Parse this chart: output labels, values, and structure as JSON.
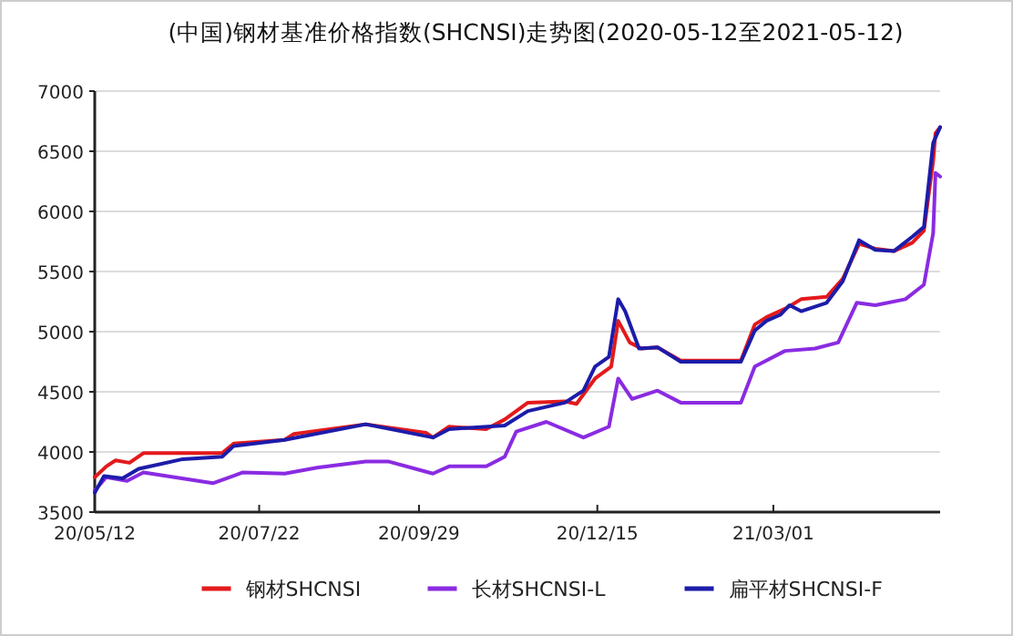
{
  "chart_data": {
    "type": "line",
    "title": "(中国)钢材基准价格指数(SHCNSI)走势图(2020-05-12至2021-05-12)",
    "xlim": [
      "2020-05-12",
      "2021-05-12"
    ],
    "xticks": [
      {
        "value": "2020-05-12",
        "label": "20/05/12"
      },
      {
        "value": "2020-07-22",
        "label": "20/07/22"
      },
      {
        "value": "2020-09-29",
        "label": "20/09/29"
      },
      {
        "value": "2020-12-15",
        "label": "20/12/15"
      },
      {
        "value": "2021-03-01",
        "label": "21/03/01"
      }
    ],
    "ylim": [
      3500,
      7000
    ],
    "yticks": [
      3500,
      4000,
      4500,
      5000,
      5500,
      6000,
      6500,
      7000
    ],
    "grid": "y",
    "legend": "bottom",
    "series": [
      {
        "name": "钢材SHCNSI",
        "color": "#e31a1c",
        "x": [
          "2020-05-12",
          "2020-05-17",
          "2020-05-21",
          "2020-05-27",
          "2020-06-02",
          "2020-06-16",
          "2020-07-06",
          "2020-07-11",
          "2020-08-02",
          "2020-08-06",
          "2020-09-06",
          "2020-10-02",
          "2020-10-05",
          "2020-10-12",
          "2020-10-28",
          "2020-11-05",
          "2020-11-15",
          "2020-12-01",
          "2020-12-06",
          "2020-12-14",
          "2020-12-21",
          "2020-12-24",
          "2020-12-29",
          "2021-01-03",
          "2021-01-10",
          "2021-01-20",
          "2021-02-02",
          "2021-02-15",
          "2021-02-21",
          "2021-02-26",
          "2021-03-06",
          "2021-03-13",
          "2021-03-24",
          "2021-03-31",
          "2021-04-07",
          "2021-04-14",
          "2021-04-22",
          "2021-04-30",
          "2021-05-05",
          "2021-05-09",
          "2021-05-10",
          "2021-05-12"
        ],
        "values": [
          3790,
          3880,
          3930,
          3910,
          3990,
          3990,
          3990,
          4070,
          4100,
          4150,
          4230,
          4160,
          4120,
          4210,
          4190,
          4270,
          4410,
          4420,
          4400,
          4610,
          4710,
          5090,
          4910,
          4860,
          4870,
          4760,
          4760,
          4760,
          5060,
          5120,
          5190,
          5270,
          5290,
          5440,
          5730,
          5690,
          5670,
          5740,
          5840,
          6420,
          6650,
          6700
        ]
      },
      {
        "name": "长材SHCNSI-L",
        "color": "#8a2be2",
        "x": [
          "2020-05-12",
          "2020-05-17",
          "2020-05-26",
          "2020-06-02",
          "2020-07-02",
          "2020-07-15",
          "2020-08-02",
          "2020-08-16",
          "2020-09-06",
          "2020-09-16",
          "2020-10-05",
          "2020-10-12",
          "2020-10-28",
          "2020-11-05",
          "2020-11-10",
          "2020-11-23",
          "2020-12-09",
          "2020-12-20",
          "2020-12-24",
          "2020-12-30",
          "2021-01-10",
          "2021-01-20",
          "2021-02-15",
          "2021-02-21",
          "2021-03-06",
          "2021-03-19",
          "2021-03-29",
          "2021-04-06",
          "2021-04-14",
          "2021-04-27",
          "2021-05-05",
          "2021-05-09",
          "2021-05-10",
          "2021-05-12"
        ],
        "values": [
          3680,
          3790,
          3760,
          3830,
          3740,
          3830,
          3820,
          3870,
          3920,
          3920,
          3820,
          3880,
          3880,
          3960,
          4170,
          4250,
          4120,
          4210,
          4610,
          4440,
          4510,
          4410,
          4410,
          4710,
          4840,
          4860,
          4910,
          5240,
          5220,
          5270,
          5390,
          5820,
          6320,
          6290
        ]
      },
      {
        "name": "扁平材SHCNSI-F",
        "color": "#1c1caa",
        "x": [
          "2020-05-12",
          "2020-05-16",
          "2020-05-24",
          "2020-05-31",
          "2020-06-19",
          "2020-07-06",
          "2020-07-11",
          "2020-08-02",
          "2020-09-06",
          "2020-10-05",
          "2020-10-12",
          "2020-11-05",
          "2020-11-15",
          "2020-12-01",
          "2020-12-09",
          "2020-12-14",
          "2020-12-20",
          "2020-12-24",
          "2020-12-27",
          "2021-01-02",
          "2021-01-10",
          "2021-01-20",
          "2021-02-15",
          "2021-02-21",
          "2021-02-26",
          "2021-03-04",
          "2021-03-08",
          "2021-03-13",
          "2021-03-24",
          "2021-03-31",
          "2021-04-07",
          "2021-04-14",
          "2021-04-22",
          "2021-04-30",
          "2021-05-05",
          "2021-05-09",
          "2021-05-12"
        ],
        "values": [
          3660,
          3800,
          3780,
          3860,
          3940,
          3960,
          4050,
          4100,
          4230,
          4120,
          4190,
          4220,
          4340,
          4410,
          4510,
          4710,
          4790,
          5270,
          5170,
          4860,
          4870,
          4750,
          4750,
          5010,
          5090,
          5140,
          5220,
          5170,
          5240,
          5420,
          5760,
          5680,
          5670,
          5790,
          5870,
          6570,
          6700
        ]
      }
    ]
  }
}
